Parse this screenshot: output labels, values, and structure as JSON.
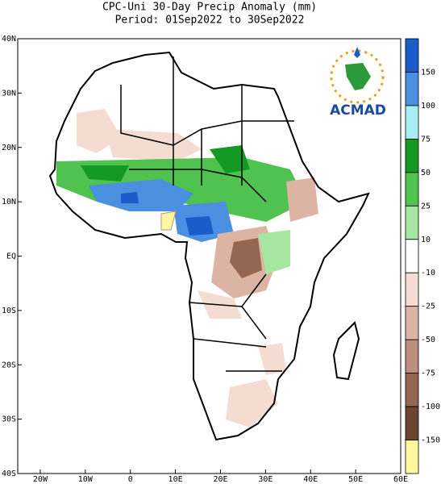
{
  "title": "CPC-Uni 30-Day Precip Anomaly (mm)",
  "subtitle": "Period: 01Sep2022 to 30Sep2022",
  "logo": "ACMAD",
  "lat_ticks": [
    {
      "value": 40,
      "label": "40N"
    },
    {
      "value": 30,
      "label": "30N"
    },
    {
      "value": 20,
      "label": "20N"
    },
    {
      "value": 10,
      "label": "10N"
    },
    {
      "value": 0,
      "label": "EQ"
    },
    {
      "value": -10,
      "label": "10S"
    },
    {
      "value": -20,
      "label": "20S"
    },
    {
      "value": -30,
      "label": "30S"
    },
    {
      "value": -40,
      "label": "40S"
    }
  ],
  "lon_ticks": [
    {
      "value": -20,
      "label": "20W"
    },
    {
      "value": -10,
      "label": "10W"
    },
    {
      "value": 0,
      "label": "0"
    },
    {
      "value": 10,
      "label": "10E"
    },
    {
      "value": 20,
      "label": "20E"
    },
    {
      "value": 30,
      "label": "30E"
    },
    {
      "value": 40,
      "label": "40E"
    },
    {
      "value": 50,
      "label": "50E"
    },
    {
      "value": 60,
      "label": "60E"
    }
  ],
  "lat_range": [
    -40,
    40
  ],
  "lon_range": [
    -25,
    60
  ],
  "colorbar": {
    "levels": [
      150,
      100,
      75,
      50,
      25,
      10,
      -10,
      -25,
      -50,
      -75,
      -100,
      -150
    ],
    "colors": [
      "#1a5cc8",
      "#4a8fe0",
      "#a8ecf4",
      "#149a24",
      "#4fc24f",
      "#a6e6a0",
      "#ffffff",
      "#f4dcd2",
      "#dcb4a4",
      "#bc8e7c",
      "#956652",
      "#6c4430",
      "#fff8a0"
    ]
  }
}
